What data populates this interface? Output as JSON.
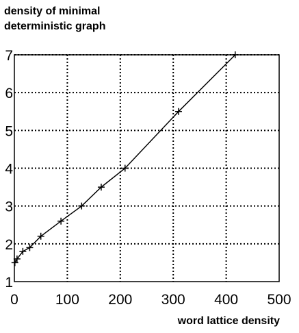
{
  "chart_data": {
    "type": "line",
    "ylabel_lines": [
      "density of minimal",
      "deterministic graph"
    ],
    "xlabel": "word lattice density",
    "xlim": [
      0,
      500
    ],
    "ylim": [
      1,
      7
    ],
    "x_ticks": [
      0,
      100,
      200,
      300,
      400,
      500
    ],
    "y_ticks": [
      1,
      2,
      3,
      4,
      5,
      6,
      7
    ],
    "grid": true,
    "marker": "plus",
    "series": [
      {
        "x": [
          1,
          5,
          16,
          29,
          50,
          88,
          127,
          164,
          209,
          310,
          417
        ],
        "y": [
          1.5,
          1.6,
          1.8,
          1.9,
          2.2,
          2.6,
          3.0,
          3.5,
          4.0,
          5.5,
          7.0
        ]
      }
    ]
  }
}
